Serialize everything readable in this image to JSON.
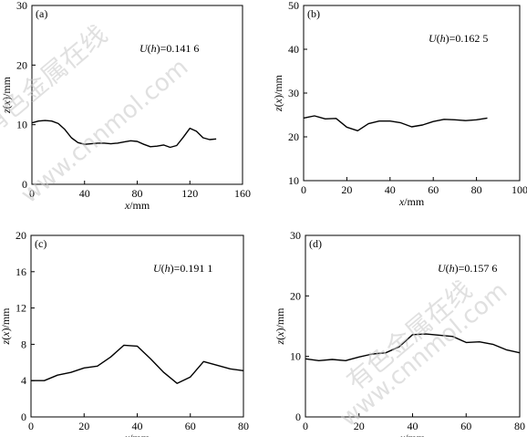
{
  "watermark": {
    "chinese": "有色金属在线",
    "url": "www.cnnmol.com"
  },
  "chart_data": [
    {
      "type": "line",
      "panel_label": "(a)",
      "annotation": "U(h)=0.141 6",
      "annotation_parts": [
        "U",
        "(",
        "h",
        ")=0.141 6"
      ],
      "xlabel": "x/mm",
      "ylabel": "z(x)/mm",
      "xlim": [
        0,
        160
      ],
      "ylim": [
        0,
        30
      ],
      "xticks": [
        0,
        40,
        80,
        120,
        160
      ],
      "yticks": [
        0,
        10,
        20,
        30
      ],
      "x": [
        0,
        5,
        10,
        15,
        20,
        25,
        30,
        35,
        40,
        45,
        50,
        55,
        60,
        65,
        70,
        75,
        80,
        85,
        90,
        95,
        100,
        105,
        110,
        115,
        120,
        125,
        130,
        135,
        140
      ],
      "y": [
        10.3,
        10.6,
        10.7,
        10.6,
        10.2,
        9.2,
        7.8,
        7.0,
        6.7,
        6.8,
        6.9,
        6.9,
        6.8,
        6.9,
        7.1,
        7.3,
        7.2,
        6.7,
        6.3,
        6.4,
        6.6,
        6.2,
        6.5,
        7.9,
        9.4,
        8.9,
        7.8,
        7.5,
        7.6
      ]
    },
    {
      "type": "line",
      "panel_label": "(b)",
      "annotation": "U(h)=0.162 5",
      "annotation_parts": [
        "U",
        "(",
        "h",
        ")=0.162 5"
      ],
      "xlabel": "x/mm",
      "ylabel": "z(x)/mm",
      "xlim": [
        0,
        100
      ],
      "ylim": [
        10,
        50
      ],
      "xticks": [
        0,
        20,
        40,
        60,
        80,
        100
      ],
      "yticks": [
        10,
        20,
        30,
        40,
        50
      ],
      "x": [
        0,
        5,
        10,
        15,
        20,
        25,
        30,
        35,
        40,
        45,
        50,
        55,
        60,
        65,
        70,
        75,
        80,
        85
      ],
      "y": [
        24.3,
        24.8,
        24.1,
        24.2,
        22.2,
        21.4,
        23.0,
        23.6,
        23.6,
        23.2,
        22.3,
        22.7,
        23.5,
        24.0,
        23.9,
        23.7,
        23.9,
        24.3
      ]
    },
    {
      "type": "line",
      "panel_label": "(c)",
      "annotation": "U(h)=0.191 1",
      "annotation_parts": [
        "U",
        "(",
        "h",
        ")=0.191 1"
      ],
      "xlabel": "x/mm",
      "ylabel": "z(x)/mm",
      "xlim": [
        0,
        80
      ],
      "ylim": [
        0,
        20
      ],
      "xticks": [
        0,
        20,
        40,
        60,
        80
      ],
      "yticks": [
        0,
        4,
        8,
        12,
        16,
        20
      ],
      "x": [
        0,
        5,
        10,
        15,
        20,
        25,
        30,
        35,
        40,
        45,
        50,
        55,
        60,
        65,
        70,
        75,
        80
      ],
      "y": [
        4.0,
        4.0,
        4.6,
        4.9,
        5.4,
        5.6,
        6.6,
        7.9,
        7.8,
        6.4,
        4.9,
        3.7,
        4.4,
        6.1,
        5.7,
        5.3,
        5.1
      ]
    },
    {
      "type": "line",
      "panel_label": "(d)",
      "annotation": "U(h)=0.157 6",
      "annotation_parts": [
        "U",
        "(",
        "h",
        ")=0.157 6"
      ],
      "xlabel": "x/mm",
      "ylabel": "z(x)/mm",
      "xlim": [
        0,
        80
      ],
      "ylim": [
        0,
        30
      ],
      "xticks": [
        0,
        20,
        40,
        60,
        80
      ],
      "yticks": [
        0,
        10,
        20,
        30
      ],
      "x": [
        0,
        5,
        10,
        15,
        20,
        25,
        30,
        35,
        40,
        45,
        50,
        55,
        60,
        65,
        70,
        75,
        80
      ],
      "y": [
        9.6,
        9.3,
        9.5,
        9.3,
        9.9,
        10.4,
        10.6,
        11.6,
        13.6,
        13.7,
        13.5,
        13.3,
        12.3,
        12.4,
        12.0,
        11.1,
        10.6
      ]
    }
  ]
}
